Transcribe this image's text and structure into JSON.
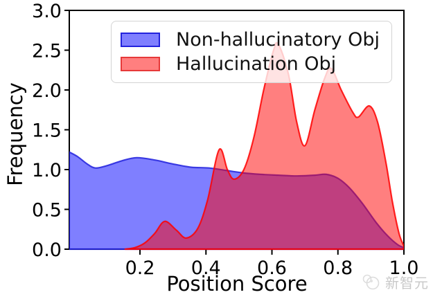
{
  "watermark": {
    "text": "新智元"
  },
  "chart_data": {
    "type": "area",
    "subtype": "kde-density",
    "title": "",
    "xlabel": "Position Score",
    "ylabel": "Frequency",
    "xlim": [
      -0.0143,
      1.0
    ],
    "ylim": [
      0,
      3.0
    ],
    "grid": false,
    "legend_position": "upper center-right inside axes",
    "x_ticks": {
      "values": [
        0.2,
        0.4,
        0.6,
        0.8,
        1.0
      ],
      "labels": [
        "0.2",
        "0.4",
        "0.6",
        "0.8",
        "1.0"
      ]
    },
    "y_ticks": {
      "values": [
        0,
        0.5,
        1.0,
        1.5,
        2.0,
        2.5,
        3.0
      ],
      "labels": [
        "0.0",
        "0.5",
        "1.0",
        "1.5",
        "2.0",
        "2.5",
        "3.0"
      ]
    },
    "colors": {
      "blue_fill": "#0000ff",
      "blue_edge": "#2222dd",
      "red_fill": "#ff0000",
      "red_edge": "#ff0000",
      "overlap_observed": "#bf3f7f",
      "axis": "#000000",
      "legend_border": "#d3d3d3",
      "watermark": "#c9c9c9"
    },
    "series": [
      {
        "name": "Non-hallucinatory Obj",
        "fill": "#0000ff",
        "fill_opacity": 0.5,
        "stroke": "#2222dd",
        "points": [
          [
            -0.0143,
            1.22
          ],
          [
            0.012,
            1.16
          ],
          [
            0.04,
            1.07
          ],
          [
            0.065,
            1.02
          ],
          [
            0.1,
            1.05
          ],
          [
            0.145,
            1.11
          ],
          [
            0.19,
            1.15
          ],
          [
            0.245,
            1.12
          ],
          [
            0.3,
            1.07
          ],
          [
            0.355,
            1.03
          ],
          [
            0.41,
            1.02
          ],
          [
            0.46,
            0.99
          ],
          [
            0.51,
            0.96
          ],
          [
            0.565,
            0.94
          ],
          [
            0.62,
            0.93
          ],
          [
            0.675,
            0.92
          ],
          [
            0.73,
            0.93
          ],
          [
            0.765,
            0.94
          ],
          [
            0.8,
            0.89
          ],
          [
            0.835,
            0.77
          ],
          [
            0.875,
            0.57
          ],
          [
            0.915,
            0.34
          ],
          [
            0.95,
            0.17
          ],
          [
            0.98,
            0.06
          ],
          [
            1.0,
            0.02
          ]
        ]
      },
      {
        "name": "Hallucination Obj",
        "fill": "#ff0000",
        "fill_opacity": 0.5,
        "stroke": "#ff0000",
        "points": [
          [
            0.155,
            0.0
          ],
          [
            0.185,
            0.02
          ],
          [
            0.215,
            0.08
          ],
          [
            0.245,
            0.2
          ],
          [
            0.275,
            0.35
          ],
          [
            0.31,
            0.24
          ],
          [
            0.34,
            0.14
          ],
          [
            0.375,
            0.26
          ],
          [
            0.405,
            0.62
          ],
          [
            0.44,
            1.25
          ],
          [
            0.465,
            1.0
          ],
          [
            0.485,
            0.88
          ],
          [
            0.515,
            1.0
          ],
          [
            0.545,
            1.4
          ],
          [
            0.575,
            2.0
          ],
          [
            0.605,
            2.5
          ],
          [
            0.62,
            2.57
          ],
          [
            0.65,
            2.2
          ],
          [
            0.675,
            1.6
          ],
          [
            0.7,
            1.3
          ],
          [
            0.73,
            1.75
          ],
          [
            0.76,
            2.15
          ],
          [
            0.78,
            2.27
          ],
          [
            0.81,
            2.0
          ],
          [
            0.845,
            1.72
          ],
          [
            0.862,
            1.66
          ],
          [
            0.895,
            1.8
          ],
          [
            0.92,
            1.6
          ],
          [
            0.945,
            1.1
          ],
          [
            0.965,
            0.6
          ],
          [
            0.985,
            0.2
          ],
          [
            1.0,
            0.04
          ]
        ]
      }
    ]
  }
}
